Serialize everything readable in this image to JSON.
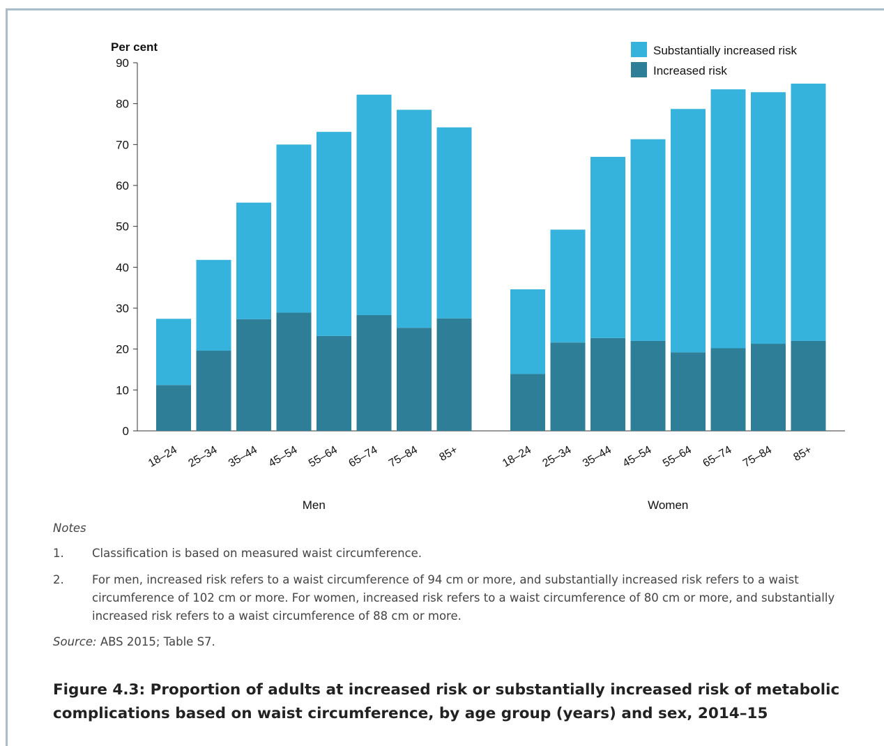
{
  "chart_data": {
    "type": "bar",
    "stacked": true,
    "ylabel": "Per cent",
    "ylim": [
      0,
      90
    ],
    "yticks": [
      0,
      10,
      20,
      30,
      40,
      50,
      60,
      70,
      80,
      90
    ],
    "groups": [
      "Men",
      "Women"
    ],
    "categories": [
      "18–24",
      "25–34",
      "35–44",
      "45–54",
      "55–64",
      "65–74",
      "75–84",
      "85+"
    ],
    "series": [
      {
        "name": "Increased risk",
        "color": "#2f7e98",
        "values": {
          "Men": [
            11.2,
            19.6,
            27.3,
            28.9,
            23.2,
            28.3,
            25.2,
            27.5
          ],
          "Women": [
            13.9,
            21.6,
            22.7,
            22.0,
            19.2,
            20.2,
            21.3,
            22.0
          ]
        }
      },
      {
        "name": "Substantially increased risk",
        "color": "#35b3dc",
        "values": {
          "Men": [
            16.2,
            22.2,
            28.5,
            41.1,
            49.9,
            53.9,
            53.3,
            46.7
          ],
          "Women": [
            20.7,
            27.6,
            44.3,
            49.3,
            59.5,
            63.3,
            61.5,
            62.9
          ]
        }
      }
    ],
    "legend_order": [
      "Substantially increased risk",
      "Increased risk"
    ],
    "legend_position": "top-right",
    "grid": false
  },
  "notes": {
    "heading": "Notes",
    "items": [
      {
        "num": "1.",
        "text": "Classification is based on measured waist circumference."
      },
      {
        "num": "2.",
        "text": "For men, increased risk refers to a waist circumference of 94 cm or more, and substantially increased risk refers to a waist circumference of 102 cm or more. For women, increased risk refers to a waist circumference of 80 cm or more, and substantially increased risk refers to a waist circumference of 88 cm or more."
      }
    ],
    "source_label": "Source:",
    "source_text": " ABS 2015; Table S7."
  },
  "caption": "Figure 4.3: Proportion of adults at increased risk or substantially increased risk of metabolic complications based on waist circumference, by age group (years) and sex, 2014–15"
}
